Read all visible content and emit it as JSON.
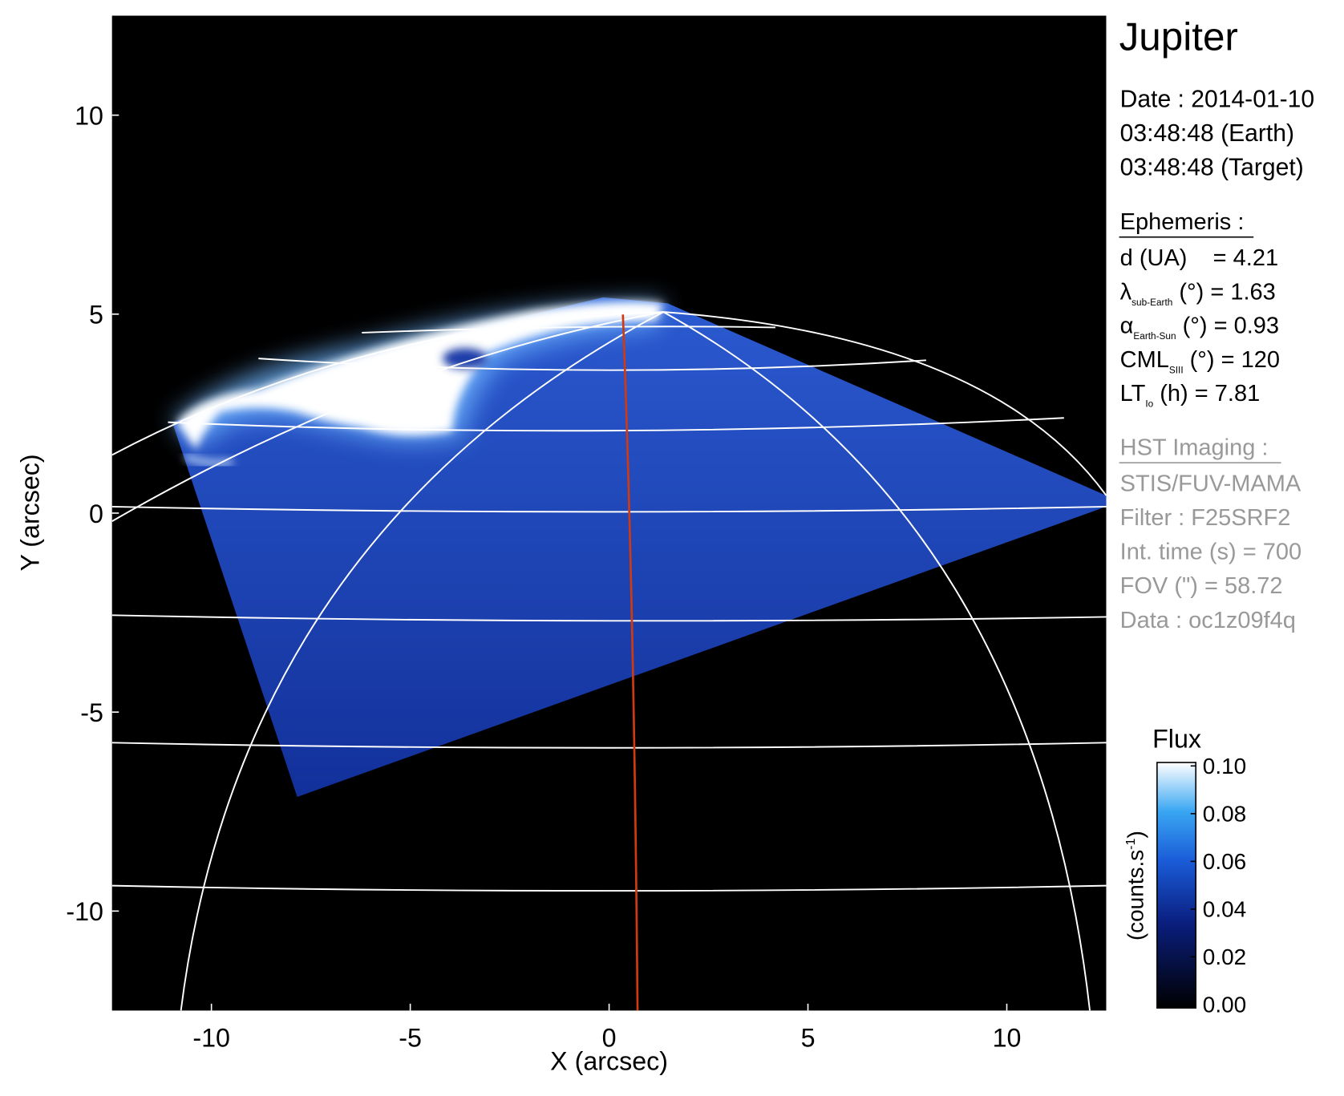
{
  "chart_data": {
    "type": "image",
    "xlabel": "X (arcsec)",
    "ylabel": "Y (arcsec)",
    "xlim": [
      -12.5,
      12.5
    ],
    "ylim": [
      -12.5,
      12.5
    ],
    "xticks": [
      -10,
      -5,
      0,
      5,
      10
    ],
    "yticks": [
      -10,
      -5,
      0,
      5,
      10
    ],
    "colorbar": {
      "title": "Flux",
      "unit": "(counts.s",
      "unit_exponent": "-1",
      "unit_end": ")",
      "clim": [
        0,
        0.1
      ],
      "ticks": [
        {
          "value": 0,
          "label": "0.00"
        },
        {
          "value": 0.02,
          "label": "0.02"
        },
        {
          "value": 0.04,
          "label": "0.04"
        },
        {
          "value": 0.06,
          "label": "0.06"
        },
        {
          "value": 0.08,
          "label": "0.08"
        },
        {
          "value": 0.1,
          "label": "0.10"
        }
      ]
    }
  },
  "info": {
    "target": "Jupiter",
    "date_lines": [
      "Date : 2014-01-10",
      "03:48:48 (Earth)",
      "03:48:48 (Target)"
    ],
    "ephemeris_heading": "Ephemeris :",
    "ephemeris": [
      {
        "label": "d (UA)    = 4.21"
      },
      {
        "label": "λ",
        "sub": "sub-Earth",
        "rest": " (°) = 1.63"
      },
      {
        "label": "α",
        "sub": "Earth-Sun",
        "rest": " (°) = 0.93"
      },
      {
        "label": "CML",
        "sub": "SIII",
        "rest": " (°) = 120"
      },
      {
        "label": "LT",
        "sub": "Io",
        "rest": " (h) = 7.81"
      }
    ],
    "imaging_heading": "HST Imaging :",
    "imaging": [
      "STIS/FUV-MAMA",
      "Filter : F25SRF2",
      "Int. time (s) = 700",
      "FOV (\") = 58.72",
      "Data : oc1z09f4q"
    ]
  }
}
